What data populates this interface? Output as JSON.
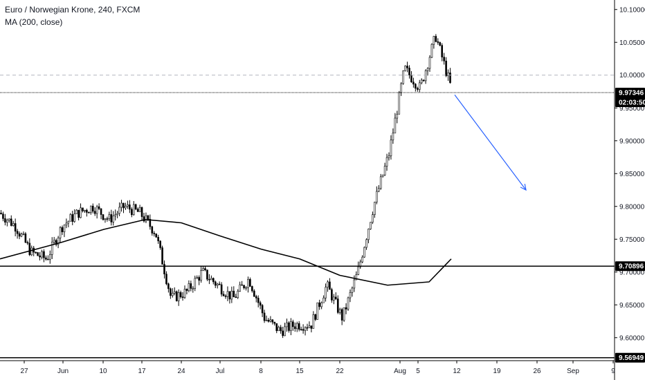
{
  "header": {
    "title": "Euro / Norwegian Krone, 240, FXCM",
    "indicator": "MA (200, close)"
  },
  "colors": {
    "candle_up": "#ffffff",
    "candle_down": "#000000",
    "candle_border": "#000000",
    "ma_line": "#000000",
    "arrow": "#2962ff",
    "price_tag_bg": "#000000",
    "level_dashed": "#b2b5be"
  },
  "chart_data": {
    "type": "candlestick",
    "title": "Euro / Norwegian Krone, 240, FXCM",
    "ylim": [
      9.565,
      10.125
    ],
    "y_ticks": [
      "10.10000",
      "10.05000",
      "10.00000",
      "9.95000",
      "9.90000",
      "9.85000",
      "9.80000",
      "9.75000",
      "9.70000",
      "9.65000",
      "9.60000"
    ],
    "x_ticks": [
      "27",
      "Jun",
      "10",
      "17",
      "24",
      "Jul",
      "8",
      "15",
      "22",
      "Aug",
      "5",
      "12",
      "19",
      "26",
      "Sep",
      "9"
    ],
    "price_levels": [
      {
        "label": "10.00006",
        "value": 10.00006,
        "style": "dashed"
      },
      {
        "label": "9.97346",
        "value": 9.97346,
        "style": "dotted",
        "countdown": "02:03:50"
      },
      {
        "label": "9.70896",
        "value": 9.70896,
        "style": "solid"
      },
      {
        "label": "9.56949",
        "value": 9.56949,
        "style": "solid"
      }
    ],
    "close_path": [
      [
        "27",
        9.79
      ],
      [
        "27",
        9.77
      ],
      [
        "27",
        9.73
      ],
      [
        "27",
        9.72
      ],
      [
        "Jun",
        9.77
      ],
      [
        "Jun",
        9.79
      ],
      [
        "10",
        9.8
      ],
      [
        "10",
        9.78
      ],
      [
        "17",
        9.8
      ],
      [
        "17",
        9.79
      ],
      [
        "17",
        9.76
      ],
      [
        "24",
        9.66
      ],
      [
        "24",
        9.67
      ],
      [
        "24",
        9.7
      ],
      [
        "Jul",
        9.68
      ],
      [
        "Jul",
        9.66
      ],
      [
        "8",
        9.69
      ],
      [
        "8",
        9.63
      ],
      [
        "15",
        9.61
      ],
      [
        "15",
        9.62
      ],
      [
        "22",
        9.62
      ],
      [
        "22",
        9.68
      ],
      [
        "22",
        9.63
      ],
      [
        "Aug",
        9.7
      ],
      [
        "Aug",
        9.8
      ],
      [
        "5",
        9.88
      ],
      [
        "5",
        10.01
      ],
      [
        "5",
        9.98
      ],
      [
        "12",
        10.06
      ],
      [
        "12",
        9.98
      ]
    ],
    "ma_200": [
      [
        "27",
        9.72
      ],
      [
        "Jun",
        9.745
      ],
      [
        "10",
        9.765
      ],
      [
        "17",
        9.78
      ],
      [
        "24",
        9.775
      ],
      [
        "Jul",
        9.755
      ],
      [
        "8",
        9.735
      ],
      [
        "15",
        9.72
      ],
      [
        "22",
        9.695
      ],
      [
        "Aug",
        9.68
      ],
      [
        "5",
        9.685
      ],
      [
        "12",
        9.72
      ]
    ],
    "projection_arrow": {
      "from": [
        "12",
        9.97
      ],
      "to": [
        "26",
        9.825
      ]
    },
    "grid": false,
    "legend": "top-left"
  }
}
